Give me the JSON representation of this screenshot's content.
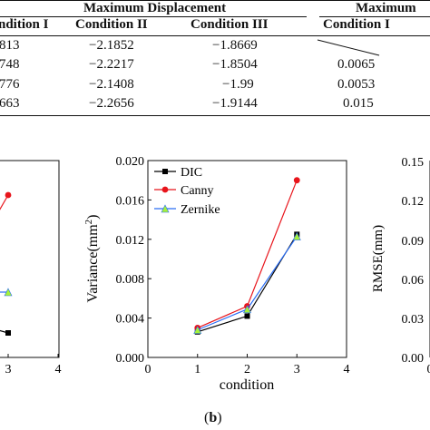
{
  "table": {
    "group_header_left": "Maximum Displacement",
    "group_header_right": "Maximum",
    "columns": [
      "ndition I",
      "Condition II",
      "Condition III",
      "Condition I"
    ],
    "rows": [
      [
        "813",
        "−2.1852",
        "−1.8669",
        ""
      ],
      [
        "748",
        "−2.2217",
        "−1.8504",
        "0.0065"
      ],
      [
        "776",
        "−2.1408",
        "−1.99",
        "0.0053"
      ],
      [
        "663",
        "−2.2656",
        "−1.9144",
        "0.015"
      ]
    ]
  },
  "panels": {
    "left_partial": {
      "x_tick_labels": [
        "3",
        "4"
      ]
    },
    "right_partial": {
      "y_tick_labels": [
        "0.15",
        "0.12",
        "0.09",
        "0.06",
        "0.03",
        "0.00"
      ],
      "ylabel": "RMSE(mm)",
      "x_tick_labels": [
        "0"
      ]
    },
    "b_label_open": "(",
    "b_label_letter": "b",
    "b_label_close": ")"
  },
  "chart_data": {
    "type": "line",
    "title": "",
    "xlabel": "condition",
    "ylabel": "Variance(mm",
    "ylabel_sup": "2",
    "ylabel_close": ")",
    "xlim": [
      0,
      4
    ],
    "ylim": [
      0,
      0.02
    ],
    "x_ticks": [
      "0",
      "1",
      "2",
      "3",
      "4"
    ],
    "y_ticks": [
      "0.000",
      "0.004",
      "0.008",
      "0.012",
      "0.016",
      "0.020"
    ],
    "legend_position": "top-left",
    "x": [
      1,
      2,
      3
    ],
    "series": [
      {
        "name": "DIC",
        "values": [
          0.0026,
          0.0042,
          0.0125
        ],
        "color": "#000000",
        "marker": "square"
      },
      {
        "name": "Canny",
        "values": [
          0.003,
          0.0052,
          0.018
        ],
        "color": "#e8141b",
        "marker": "circle"
      },
      {
        "name": "Zernike",
        "values": [
          0.0028,
          0.0049,
          0.0123
        ],
        "color": "#2a6df4",
        "marker_color": "#a6f23a",
        "marker": "triangle"
      }
    ]
  }
}
